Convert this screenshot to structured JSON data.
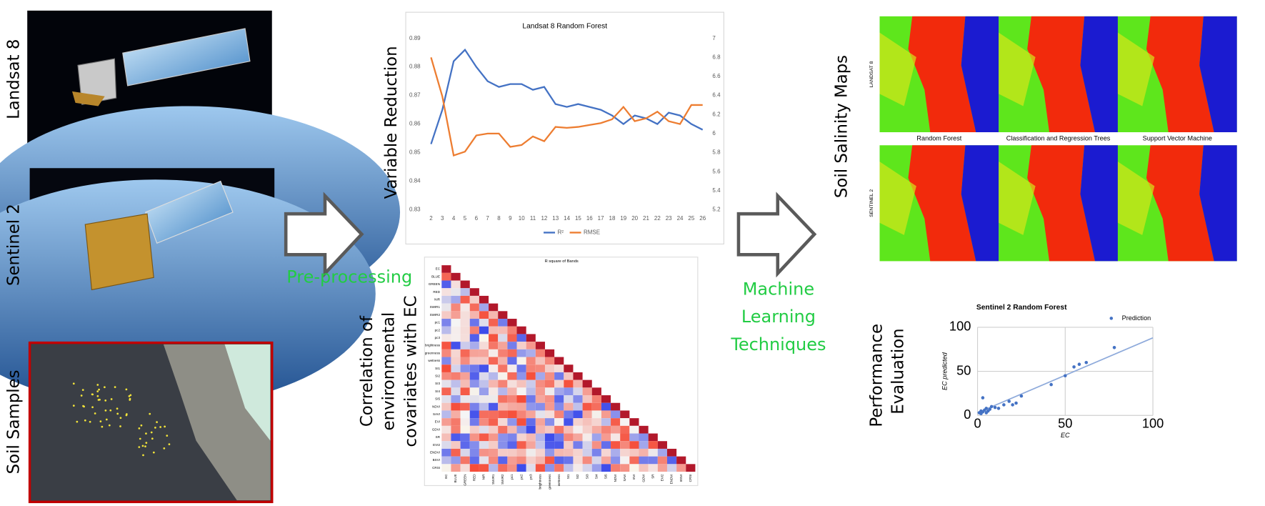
{
  "inputs": [
    "Landsat 8",
    "Sentinel 2",
    "Soil Samples"
  ],
  "steps": {
    "preprocessing": "Pre-processing",
    "machine_learning": [
      "Machine",
      "Learning",
      "Techniques"
    ]
  },
  "variable_reduction": {
    "label": "Variable Reduction",
    "chart_data": {
      "type": "line",
      "title": "Landsat 8 Random Forest",
      "categories": [
        "2",
        "3",
        "4",
        "5",
        "6",
        "7",
        "8",
        "9",
        "10",
        "11",
        "12",
        "13",
        "14",
        "15",
        "16",
        "17",
        "18",
        "19",
        "20",
        "21",
        "22",
        "23",
        "24",
        "25",
        "26"
      ],
      "ylim": [
        0.83,
        0.89
      ],
      "yticks": [
        0.83,
        0.84,
        0.85,
        0.86,
        0.87,
        0.88,
        0.89
      ],
      "y2lim": [
        5.2,
        7
      ],
      "y2ticks": [
        5.2,
        5.4,
        5.6,
        5.8,
        6,
        6.2,
        6.4,
        6.6,
        6.8,
        7
      ],
      "grid": false,
      "legend": "bottom",
      "series": [
        {
          "name": "R²",
          "color": "#4472c4",
          "values": [
            0.853,
            0.865,
            0.882,
            0.886,
            0.88,
            0.875,
            0.873,
            0.874,
            0.874,
            0.872,
            0.873,
            0.867,
            0.866,
            0.867,
            0.866,
            0.865,
            0.863,
            0.86,
            0.863,
            0.862,
            0.86,
            0.864,
            0.863,
            0.86,
            0.858
          ]
        },
        {
          "name": "RMSE",
          "color": "#ed7d31",
          "axis": "y2",
          "values": [
            6.8,
            6.39,
            5.77,
            5.81,
            5.98,
            6.0,
            6.0,
            5.86,
            5.88,
            5.97,
            5.92,
            6.07,
            6.06,
            6.07,
            6.09,
            6.11,
            6.15,
            6.28,
            6.13,
            6.16,
            6.23,
            6.13,
            6.1,
            6.3,
            6.3
          ]
        }
      ]
    }
  },
  "correlation": {
    "label": [
      "Correlation of",
      "environmental",
      "covariates with EC"
    ],
    "heatmap": {
      "title": "R square of Bands",
      "bands": [
        "EC",
        "BLUE",
        "GREEN",
        "RED",
        "NIR",
        "SWIR1",
        "SWIR2",
        "pc1",
        "pc2",
        "pc3",
        "brightness",
        "greenness",
        "wetness",
        "SI1",
        "SI2",
        "SI3",
        "SI4",
        "SI5",
        "NDVI",
        "SAVI",
        "EVI",
        "GDVI",
        "SR",
        "EVI2",
        "ENDVI",
        "BSVI",
        "CRSI"
      ]
    }
  },
  "salinity_maps": {
    "label": "Soil Salinity Maps",
    "rows": [
      "LANDSAT 8",
      "SENTINEL 2"
    ],
    "columns": [
      "Random Forest",
      "Classification and Regression Trees",
      "Support Vector Machine"
    ]
  },
  "performance": {
    "label": [
      "Performance",
      "Evaluation"
    ],
    "chart_data": {
      "type": "scatter",
      "title": "Sentinel 2 Random Forest",
      "x_label": "EC",
      "y_label": "EC predicted",
      "xlim": [
        0,
        100
      ],
      "ylim": [
        0,
        100
      ],
      "xticks": [
        0,
        50,
        100
      ],
      "yticks": [
        0,
        50,
        100
      ],
      "grid": true,
      "legend": "top-right",
      "series": [
        {
          "name": "Prediction",
          "color": "#4472c4",
          "x": [
            1,
            2,
            3,
            4,
            5,
            3,
            6,
            8,
            10,
            12,
            15,
            18,
            20,
            22,
            25,
            42,
            50,
            55,
            58,
            62,
            78,
            2,
            5,
            7
          ],
          "values": [
            3,
            5,
            4,
            6,
            8,
            20,
            5,
            10,
            9,
            8,
            12,
            16,
            12,
            14,
            22,
            35,
            45,
            55,
            58,
            60,
            77,
            2,
            3,
            7
          ]
        }
      ],
      "trendline": {
        "x": [
          0,
          100
        ],
        "values": [
          3,
          88
        ]
      }
    }
  }
}
